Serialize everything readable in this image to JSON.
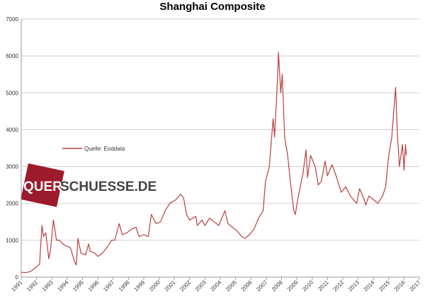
{
  "chart_data": {
    "type": "line",
    "title": "Shanghai Composite",
    "annotations": [
      "QUER",
      "SCHUESSE.DE"
    ],
    "x": [
      1991.0,
      1991.3,
      1991.6,
      1991.9,
      1992.2,
      1992.35,
      1992.45,
      1992.6,
      1992.8,
      1992.9,
      1993.1,
      1993.3,
      1993.5,
      1993.7,
      1993.9,
      1994.2,
      1994.5,
      1994.6,
      1994.7,
      1994.9,
      1995.2,
      1995.4,
      1995.5,
      1995.8,
      1996.0,
      1996.3,
      1996.6,
      1996.9,
      1997.1,
      1997.4,
      1997.6,
      1997.9,
      1998.2,
      1998.5,
      1998.7,
      1999.0,
      1999.3,
      1999.5,
      1999.8,
      2000.1,
      2000.4,
      2000.7,
      2001.1,
      2001.4,
      2001.6,
      2001.8,
      2002.0,
      2002.4,
      2002.5,
      2002.8,
      2003.0,
      2003.3,
      2003.6,
      2003.9,
      2004.1,
      2004.3,
      2004.5,
      2004.8,
      2005.1,
      2005.4,
      2005.6,
      2005.9,
      2006.2,
      2006.5,
      2006.8,
      2006.95,
      2007.2,
      2007.45,
      2007.55,
      2007.75,
      2007.8,
      2007.95,
      2008.05,
      2008.2,
      2008.4,
      2008.6,
      2008.8,
      2008.9,
      2009.1,
      2009.4,
      2009.6,
      2009.7,
      2009.9,
      2010.2,
      2010.4,
      2010.6,
      2010.85,
      2011.0,
      2011.3,
      2011.6,
      2011.9,
      2012.2,
      2012.5,
      2012.9,
      2013.1,
      2013.4,
      2013.5,
      2013.7,
      2014.0,
      2014.3,
      2014.6,
      2014.8,
      2015.0,
      2015.2,
      2015.45,
      2015.55,
      2015.7,
      2015.9,
      2016.0,
      2016.1,
      2016.15
    ],
    "series": [
      {
        "name": "Quelle: Eoddata",
        "color": "#b8413d",
        "values": [
          130,
          120,
          150,
          250,
          350,
          1400,
          1100,
          1200,
          500,
          700,
          1550,
          1000,
          1000,
          900,
          850,
          800,
          400,
          330,
          1050,
          650,
          600,
          900,
          700,
          650,
          560,
          650,
          800,
          1000,
          1000,
          1450,
          1150,
          1200,
          1300,
          1350,
          1100,
          1150,
          1100,
          1700,
          1450,
          1500,
          1800,
          2000,
          2100,
          2250,
          2150,
          1700,
          1550,
          1650,
          1400,
          1550,
          1400,
          1600,
          1500,
          1400,
          1600,
          1800,
          1450,
          1350,
          1250,
          1100,
          1050,
          1150,
          1300,
          1600,
          1800,
          2600,
          3000,
          4300,
          3800,
          5500,
          6100,
          5000,
          5500,
          3800,
          3300,
          2500,
          1800,
          1700,
          2200,
          2800,
          3450,
          2700,
          3300,
          3000,
          2500,
          2600,
          3150,
          2750,
          3050,
          2700,
          2300,
          2450,
          2200,
          2000,
          2400,
          2100,
          1950,
          2200,
          2100,
          2000,
          2200,
          2450,
          3300,
          3800,
          5150,
          4000,
          3000,
          3600,
          2900,
          3600,
          3300
        ]
      }
    ],
    "xlim": [
      1991,
      2017
    ],
    "xticks": [
      1991,
      1992,
      1993,
      1994,
      1995,
      1996,
      1997,
      1998,
      1999,
      2000,
      2001,
      2002,
      2003,
      2004,
      2005,
      2006,
      2007,
      2008,
      2009,
      2010,
      2011,
      2012,
      2013,
      2014,
      2015,
      2016,
      2017
    ],
    "ylim": [
      0,
      7000
    ],
    "yticks": [
      0,
      1000,
      2000,
      3000,
      4000,
      5000,
      6000,
      7000
    ],
    "grid": true,
    "legend": "upper-left"
  }
}
